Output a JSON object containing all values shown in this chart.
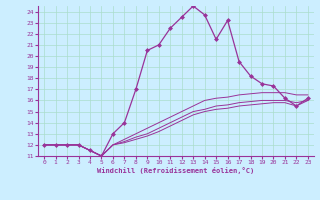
{
  "xlabel": "Windchill (Refroidissement éolien,°C)",
  "bg_color": "#cceeff",
  "grid_color": "#aaddcc",
  "line_color": "#993399",
  "xlim": [
    -0.5,
    23.5
  ],
  "ylim": [
    11,
    24.5
  ],
  "yticks": [
    11,
    12,
    13,
    14,
    15,
    16,
    17,
    18,
    19,
    20,
    21,
    22,
    23,
    24
  ],
  "xticks": [
    0,
    1,
    2,
    3,
    4,
    5,
    6,
    7,
    8,
    9,
    10,
    11,
    12,
    13,
    14,
    15,
    16,
    17,
    18,
    19,
    20,
    21,
    22,
    23
  ],
  "main_line": {
    "x": [
      0,
      1,
      2,
      3,
      4,
      5,
      6,
      7,
      8,
      9,
      10,
      11,
      12,
      13,
      14,
      15,
      16,
      17,
      18,
      19,
      20,
      21,
      22,
      23
    ],
    "y": [
      12,
      12,
      12,
      12,
      11.5,
      11,
      13,
      14,
      17,
      20.5,
      21,
      22.5,
      23.5,
      24.5,
      23.7,
      21.5,
      23.2,
      19.5,
      18.2,
      17.5,
      17.3,
      16.2,
      15.5,
      16.2
    ]
  },
  "line2": {
    "x": [
      0,
      1,
      2,
      3,
      4,
      5,
      6,
      7,
      8,
      9,
      10,
      11,
      12,
      13,
      14,
      15,
      16,
      17,
      18,
      19,
      20,
      21,
      22,
      23
    ],
    "y": [
      12,
      12,
      12,
      12,
      11.5,
      11,
      12,
      12.5,
      13,
      13.5,
      14,
      14.5,
      15,
      15.5,
      16,
      16.2,
      16.3,
      16.5,
      16.6,
      16.7,
      16.7,
      16.7,
      16.5,
      16.5
    ]
  },
  "line3": {
    "x": [
      0,
      1,
      2,
      3,
      4,
      5,
      6,
      7,
      8,
      9,
      10,
      11,
      12,
      13,
      14,
      15,
      16,
      17,
      18,
      19,
      20,
      21,
      22,
      23
    ],
    "y": [
      12,
      12,
      12,
      12,
      11.5,
      11,
      12,
      12.3,
      12.7,
      13,
      13.5,
      14,
      14.5,
      15,
      15.2,
      15.5,
      15.6,
      15.8,
      15.9,
      16,
      16,
      16,
      15.8,
      16
    ]
  },
  "line4": {
    "x": [
      0,
      1,
      2,
      3,
      4,
      5,
      6,
      7,
      8,
      9,
      10,
      11,
      12,
      13,
      14,
      15,
      16,
      17,
      18,
      19,
      20,
      21,
      22,
      23
    ],
    "y": [
      12,
      12,
      12,
      12,
      11.5,
      11,
      12,
      12.2,
      12.5,
      12.8,
      13.2,
      13.7,
      14.2,
      14.7,
      15,
      15.2,
      15.3,
      15.5,
      15.6,
      15.7,
      15.8,
      15.8,
      15.5,
      16
    ]
  }
}
